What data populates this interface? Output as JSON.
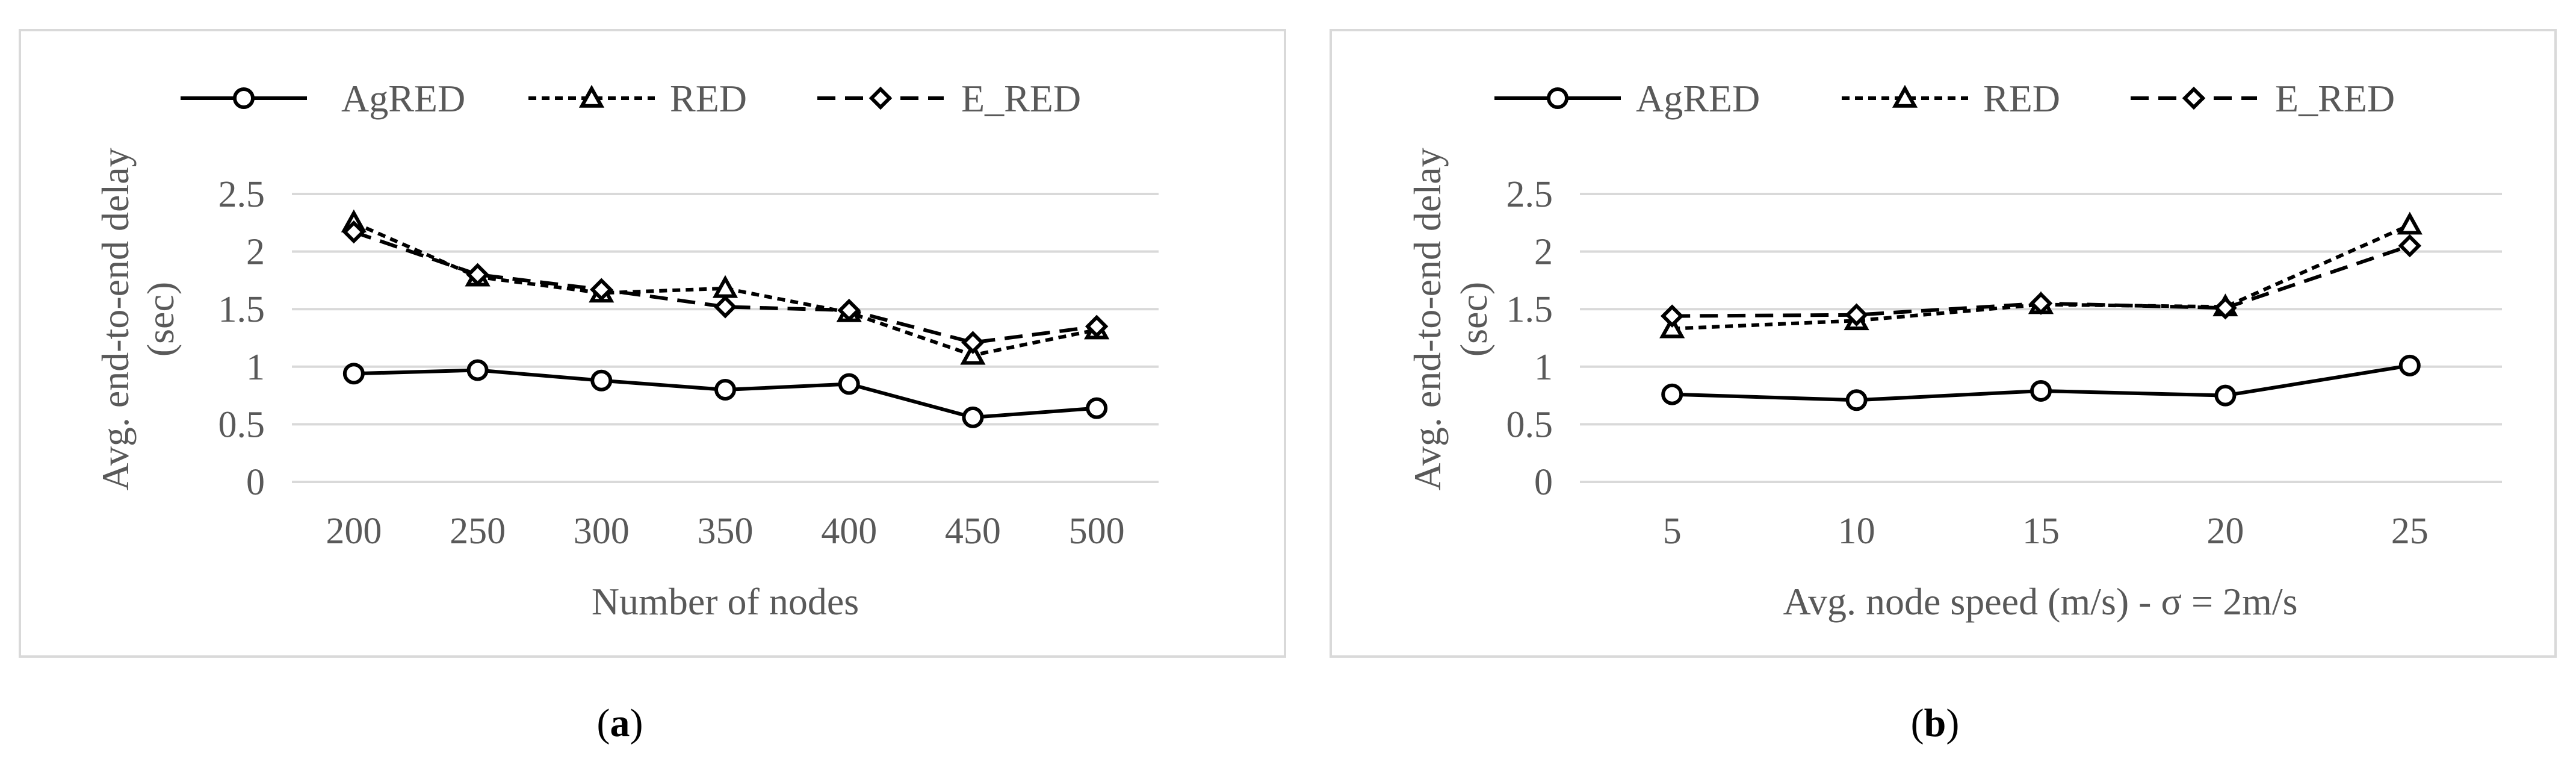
{
  "chart_data": [
    {
      "type": "line",
      "caption_open": "(",
      "caption_letter": "a",
      "caption_close": ")",
      "xlabel": "Number of nodes",
      "ylabel_lines": [
        "Avg. end-to-end delay",
        "(sec)"
      ],
      "categories": [
        "200",
        "250",
        "300",
        "350",
        "400",
        "450",
        "500"
      ],
      "y_ticks": [
        "0",
        "0.5",
        "1",
        "1.5",
        "2",
        "2.5"
      ],
      "ylim": [
        0,
        2.5
      ],
      "grid": true,
      "legend_position": "top",
      "series": [
        {
          "name": "AgRED",
          "marker": "circle",
          "dash": "solid",
          "values": [
            0.94,
            0.97,
            0.88,
            0.8,
            0.85,
            0.56,
            0.64
          ]
        },
        {
          "name": "RED",
          "marker": "triangle",
          "dash": "short-dash",
          "values": [
            2.25,
            1.78,
            1.64,
            1.68,
            1.47,
            1.1,
            1.32
          ]
        },
        {
          "name": "E_RED",
          "marker": "diamond",
          "dash": "long-dash",
          "values": [
            2.17,
            1.8,
            1.67,
            1.52,
            1.49,
            1.21,
            1.35
          ]
        }
      ]
    },
    {
      "type": "line",
      "caption_open": "(",
      "caption_letter": "b",
      "caption_close": ")",
      "xlabel": "Avg. node speed (m/s) - σ = 2m/s",
      "ylabel_lines": [
        "Avg. end-to-end delay",
        "(sec)"
      ],
      "categories": [
        "5",
        "10",
        "15",
        "20",
        "25"
      ],
      "y_ticks": [
        "0",
        "0.5",
        "1",
        "1.5",
        "2",
        "2.5"
      ],
      "ylim": [
        0,
        2.5
      ],
      "grid": true,
      "legend_position": "top",
      "series": [
        {
          "name": "AgRED",
          "marker": "circle",
          "dash": "solid",
          "values": [
            0.76,
            0.71,
            0.79,
            0.75,
            1.01
          ]
        },
        {
          "name": "RED",
          "marker": "triangle",
          "dash": "short-dash",
          "values": [
            1.33,
            1.4,
            1.54,
            1.52,
            2.23
          ]
        },
        {
          "name": "E_RED",
          "marker": "diamond",
          "dash": "long-dash",
          "values": [
            1.44,
            1.45,
            1.55,
            1.51,
            2.05
          ]
        }
      ]
    }
  ],
  "colors": {
    "line": "#000000",
    "grid": "#d9d9d9",
    "text": "#595959",
    "frame": "#d9d9d9"
  }
}
